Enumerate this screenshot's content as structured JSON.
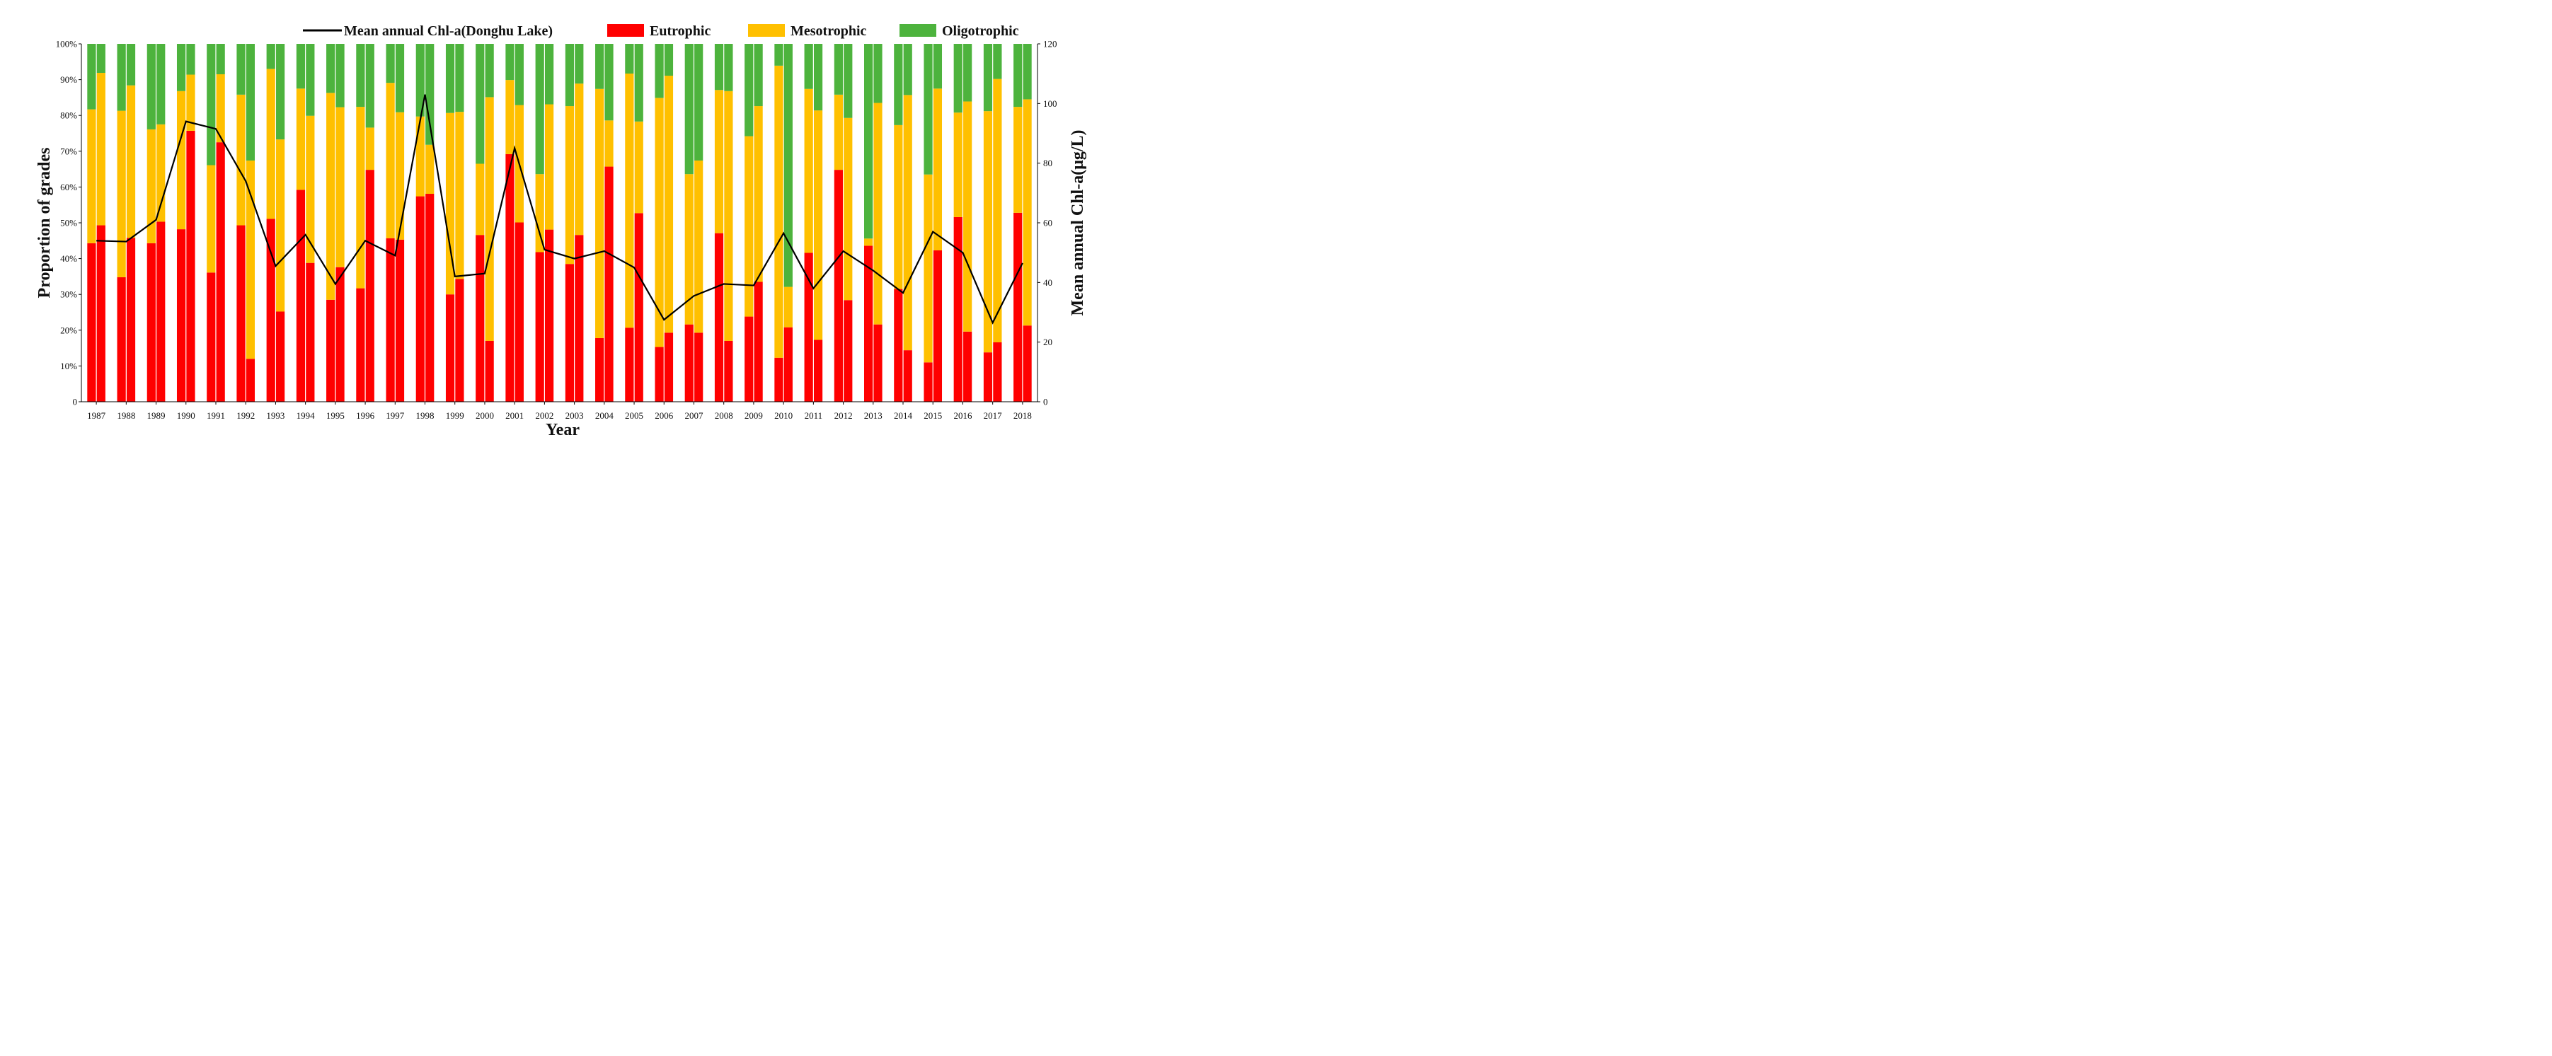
{
  "chart_data": {
    "type": "bar",
    "stacked": true,
    "categories": [
      "1987",
      "1988",
      "1989",
      "1990",
      "1991",
      "1992",
      "1993",
      "1994",
      "1995",
      "1996",
      "1997",
      "1998",
      "1999",
      "2000",
      "2001",
      "2002",
      "2003",
      "2004",
      "2005",
      "2006",
      "2007",
      "2008",
      "2009",
      "2010",
      "2011",
      "2012",
      "2013",
      "2014",
      "2015",
      "2016",
      "2017",
      "2018"
    ],
    "xlabel": "Year",
    "ylabel": "Proportion of grades",
    "y2label": "Mean annual Chl-a(μg/L)",
    "ylim": [
      0,
      100
    ],
    "y2lim": [
      0,
      120
    ],
    "yticks": [
      "0",
      "10%",
      "20%",
      "30%",
      "40%",
      "50%",
      "60%",
      "70%",
      "80%",
      "90%",
      "100%"
    ],
    "y2ticks": [
      "0",
      "20",
      "40",
      "60",
      "80",
      "100",
      "120"
    ],
    "bars_per_year": 2,
    "grades": [
      {
        "name": "Eutrophic",
        "color": "#ff0000"
      },
      {
        "name": "Mesotrophic",
        "color": "#ffc000"
      },
      {
        "name": "Oligotrophic",
        "color": "#4db33d"
      }
    ],
    "bars": [
      [
        [
          44.3,
          37.4,
          18.3
        ],
        [
          49.3,
          42.6,
          8.1
        ]
      ],
      [
        [
          34.8,
          46.5,
          18.7
        ],
        [
          45.8,
          42.6,
          11.6
        ]
      ],
      [
        [
          44.3,
          31.8,
          23.9
        ],
        [
          50.3,
          27.2,
          22.5
        ]
      ],
      [
        [
          48.2,
          38.6,
          13.2
        ],
        [
          75.7,
          15.7,
          8.6
        ]
      ],
      [
        [
          36.1,
          30.0,
          33.9
        ],
        [
          72.5,
          19.0,
          8.5
        ]
      ],
      [
        [
          49.3,
          36.5,
          14.2
        ],
        [
          12.0,
          55.4,
          32.6
        ]
      ],
      [
        [
          51.1,
          41.9,
          7.0
        ],
        [
          25.2,
          48.1,
          26.7
        ]
      ],
      [
        [
          59.2,
          28.3,
          12.5
        ],
        [
          38.8,
          41.1,
          20.1
        ]
      ],
      [
        [
          28.5,
          57.8,
          13.7
        ],
        [
          37.6,
          44.7,
          17.7
        ]
      ],
      [
        [
          31.7,
          50.7,
          17.6
        ],
        [
          64.8,
          11.8,
          23.4
        ]
      ],
      [
        [
          45.7,
          43.4,
          10.9
        ],
        [
          45.3,
          35.6,
          19.1
        ]
      ],
      [
        [
          57.4,
          22.3,
          20.3
        ],
        [
          58.1,
          13.7,
          28.2
        ]
      ],
      [
        [
          30.0,
          50.7,
          19.3
        ],
        [
          34.3,
          46.7,
          19.0
        ]
      ],
      [
        [
          46.6,
          19.9,
          33.5
        ],
        [
          17.0,
          68.1,
          14.9
        ]
      ],
      [
        [
          69.2,
          20.7,
          10.1
        ],
        [
          50.1,
          32.8,
          17.1
        ]
      ],
      [
        [
          41.8,
          21.8,
          36.4
        ],
        [
          48.1,
          35.0,
          16.9
        ]
      ],
      [
        [
          38.5,
          44.1,
          17.4
        ],
        [
          46.6,
          42.3,
          11.1
        ]
      ],
      [
        [
          17.8,
          69.6,
          12.6
        ],
        [
          65.7,
          12.9,
          21.4
        ]
      ],
      [
        [
          20.7,
          71.0,
          8.3
        ],
        [
          52.7,
          25.6,
          21.7
        ]
      ],
      [
        [
          15.3,
          69.6,
          15.1
        ],
        [
          19.3,
          71.8,
          8.9
        ]
      ],
      [
        [
          21.6,
          42.0,
          36.4
        ],
        [
          19.3,
          48.1,
          32.6
        ]
      ],
      [
        [
          47.1,
          40.0,
          12.9
        ],
        [
          17.0,
          69.8,
          13.2
        ]
      ],
      [
        [
          23.8,
          50.4,
          25.8
        ],
        [
          33.5,
          49.1,
          17.4
        ]
      ],
      [
        [
          12.3,
          81.6,
          6.1
        ],
        [
          20.8,
          11.3,
          67.9
        ]
      ],
      [
        [
          41.6,
          45.8,
          12.6
        ],
        [
          17.3,
          64.1,
          18.6
        ]
      ],
      [
        [
          64.8,
          21.0,
          14.2
        ],
        [
          28.4,
          50.9,
          20.7
        ]
      ],
      [
        [
          43.6,
          2.0,
          54.4
        ],
        [
          21.6,
          61.9,
          16.5
        ]
      ],
      [
        [
          31.5,
          45.8,
          22.7
        ],
        [
          14.4,
          71.3,
          14.3
        ]
      ],
      [
        [
          11.0,
          52.5,
          36.5
        ],
        [
          42.3,
          45.2,
          12.5
        ]
      ],
      [
        [
          51.6,
          29.2,
          19.2
        ],
        [
          19.6,
          64.3,
          16.1
        ]
      ],
      [
        [
          13.8,
          67.4,
          18.8
        ],
        [
          16.6,
          73.6,
          9.8
        ]
      ],
      [
        [
          52.8,
          29.6,
          17.6
        ],
        [
          21.3,
          63.2,
          15.5
        ]
      ]
    ],
    "line": {
      "name": "Mean annual Chl-a(Donghu Lake)",
      "color": "#000000",
      "axis": "right",
      "values": [
        54.0,
        53.7,
        61.0,
        94.0,
        91.5,
        74.0,
        45.5,
        56.0,
        39.5,
        54.0,
        49.0,
        103.0,
        42.0,
        43.0,
        85.0,
        51.0,
        48.0,
        50.5,
        45.0,
        27.5,
        35.5,
        39.5,
        39.0,
        56.5,
        38.0,
        50.5,
        44.0,
        36.5,
        57.0,
        50.0,
        26.5,
        46.5
      ]
    },
    "legend": {
      "placement": "top-right",
      "entries": [
        "Mean annual Chl-a(Donghu Lake)",
        "Eutrophic",
        "Mesotrophic",
        "Oligotrophic"
      ]
    },
    "grid": false
  }
}
